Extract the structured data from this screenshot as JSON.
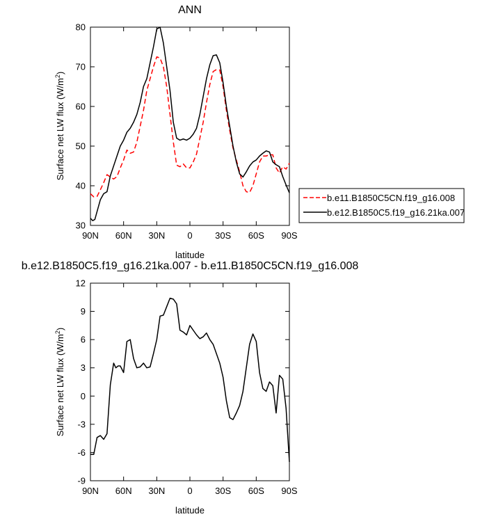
{
  "chart_data": [
    {
      "type": "line",
      "title": "ANN",
      "xlabel": "latitude",
      "ylabel_main": "Surface net LW flux (W/m",
      "ylabel_sup": "2",
      "ylabel_close": ")",
      "xlim": [
        90,
        -90
      ],
      "ylim": [
        30,
        80
      ],
      "xticks": [
        {
          "value": 90,
          "label": "90N"
        },
        {
          "value": 60,
          "label": "60N"
        },
        {
          "value": 30,
          "label": "30N"
        },
        {
          "value": 0,
          "label": "0"
        },
        {
          "value": -30,
          "label": "30S"
        },
        {
          "value": -60,
          "label": "60S"
        },
        {
          "value": -90,
          "label": "90S"
        }
      ],
      "yticks": [
        30,
        40,
        50,
        60,
        70,
        80
      ],
      "grid": false,
      "legend_position": "right",
      "series": [
        {
          "name": "b.e11.B1850C5CN.f19_g16.008",
          "color": "#ff0000",
          "dash": "dashed",
          "x": [
            90,
            87,
            84,
            81,
            78,
            75,
            72,
            69,
            66,
            63,
            60,
            57,
            54,
            51,
            48,
            45,
            42,
            39,
            36,
            33,
            30,
            27,
            24,
            21,
            18,
            15,
            12,
            9,
            6,
            3,
            0,
            -3,
            -6,
            -9,
            -12,
            -15,
            -18,
            -21,
            -24,
            -27,
            -30,
            -33,
            -36,
            -39,
            -42,
            -45,
            -48,
            -51,
            -54,
            -57,
            -60,
            -63,
            -66,
            -69,
            -72,
            -75,
            -78,
            -81,
            -84,
            -87,
            -90
          ],
          "y": [
            38,
            37.2,
            37.3,
            39,
            40.8,
            42.8,
            42.2,
            41.7,
            42.3,
            44.5,
            46.5,
            49,
            48.2,
            48.5,
            51,
            55,
            59,
            64,
            67,
            70,
            72.5,
            72.2,
            70,
            65,
            58,
            51,
            45.2,
            44.8,
            45.5,
            44.5,
            44.5,
            46,
            48,
            52,
            56,
            61,
            65.5,
            68.8,
            69.3,
            69.2,
            65,
            59,
            54,
            49.5,
            46.5,
            43.5,
            40,
            38.5,
            38.3,
            40,
            43,
            46,
            47.5,
            47.5,
            47.8,
            47.8,
            44.5,
            43.2,
            44.8,
            44.2,
            45.7
          ]
        },
        {
          "name": "b.e12.B1850C5.f19_g16.21ka.007",
          "color": "#000000",
          "dash": "solid",
          "x": [
            90,
            88,
            86,
            84,
            81,
            78,
            75,
            72,
            69,
            66,
            63,
            60,
            57,
            54,
            51,
            48,
            45,
            42,
            39,
            36,
            33,
            30,
            27,
            24,
            21,
            18,
            15,
            12,
            9,
            6,
            3,
            0,
            -3,
            -6,
            -9,
            -12,
            -15,
            -18,
            -21,
            -24,
            -27,
            -30,
            -33,
            -36,
            -39,
            -42,
            -45,
            -48,
            -51,
            -54,
            -57,
            -60,
            -63,
            -66,
            -69,
            -72,
            -75,
            -78,
            -81,
            -84,
            -87,
            -90
          ],
          "y": [
            31.8,
            31.2,
            31.5,
            33.5,
            36.5,
            38,
            38.5,
            42.5,
            45,
            47.5,
            50,
            51.5,
            53.5,
            54.5,
            56,
            58,
            61,
            65,
            67,
            71,
            75,
            79.5,
            80,
            76,
            70,
            64,
            56,
            52,
            51.5,
            51.8,
            51.5,
            52,
            53,
            54.5,
            58,
            62.5,
            67,
            70.5,
            72.8,
            73,
            71,
            66,
            60,
            55,
            50,
            46,
            43,
            42.2,
            43.5,
            45,
            46,
            46.5,
            47.5,
            48.2,
            48.8,
            48.5,
            46,
            45.3,
            44.8,
            42.3,
            40.2,
            38.2
          ]
        }
      ]
    },
    {
      "type": "line",
      "title": "b.e12.B1850C5.f19_g16.21ka.007 - b.e11.B1850C5CN.f19_g16.008",
      "xlabel": "latitude",
      "ylabel_main": "Surface net LW flux (W/m",
      "ylabel_sup": "2",
      "ylabel_close": ")",
      "xlim": [
        90,
        -90
      ],
      "ylim": [
        -9,
        12
      ],
      "xticks": [
        {
          "value": 90,
          "label": "90N"
        },
        {
          "value": 60,
          "label": "60N"
        },
        {
          "value": 30,
          "label": "30N"
        },
        {
          "value": 0,
          "label": "0"
        },
        {
          "value": -30,
          "label": "30S"
        },
        {
          "value": -60,
          "label": "60S"
        },
        {
          "value": -90,
          "label": "90S"
        }
      ],
      "yticks": [
        -9,
        -6,
        -3,
        0,
        3,
        6,
        9,
        12
      ],
      "grid": false,
      "series": [
        {
          "color": "#000000",
          "dash": "solid",
          "x": [
            90,
            87,
            84,
            81,
            78,
            75,
            72,
            69,
            67,
            65,
            63,
            60,
            57,
            54,
            51,
            48,
            45,
            42,
            39,
            36,
            33,
            30,
            27,
            24,
            21,
            18,
            15,
            12,
            9,
            6,
            3,
            0,
            -3,
            -6,
            -9,
            -12,
            -15,
            -18,
            -21,
            -24,
            -27,
            -30,
            -33,
            -36,
            -39,
            -42,
            -45,
            -48,
            -51,
            -54,
            -57,
            -60,
            -63,
            -66,
            -69,
            -72,
            -75,
            -78,
            -81,
            -84,
            -87,
            -90
          ],
          "y": [
            -6.2,
            -6.2,
            -4.4,
            -4.2,
            -4.6,
            -4,
            1.2,
            3.5,
            3,
            3.2,
            3.2,
            2.5,
            5.8,
            6,
            4,
            3,
            3.1,
            3.5,
            3,
            3.1,
            4.5,
            6,
            8.5,
            8.6,
            9.5,
            10.4,
            10.3,
            9.8,
            7,
            6.8,
            6.5,
            7.5,
            7,
            6.5,
            6.1,
            6.3,
            6.7,
            6,
            5.5,
            4.5,
            3.5,
            2,
            -0.5,
            -2.3,
            -2.5,
            -1.8,
            -1,
            0.5,
            3,
            5.5,
            6.6,
            5.8,
            2.5,
            0.8,
            0.5,
            1.5,
            1.1,
            -1.8,
            2.2,
            1.8,
            -1.3,
            -7
          ]
        }
      ]
    }
  ]
}
